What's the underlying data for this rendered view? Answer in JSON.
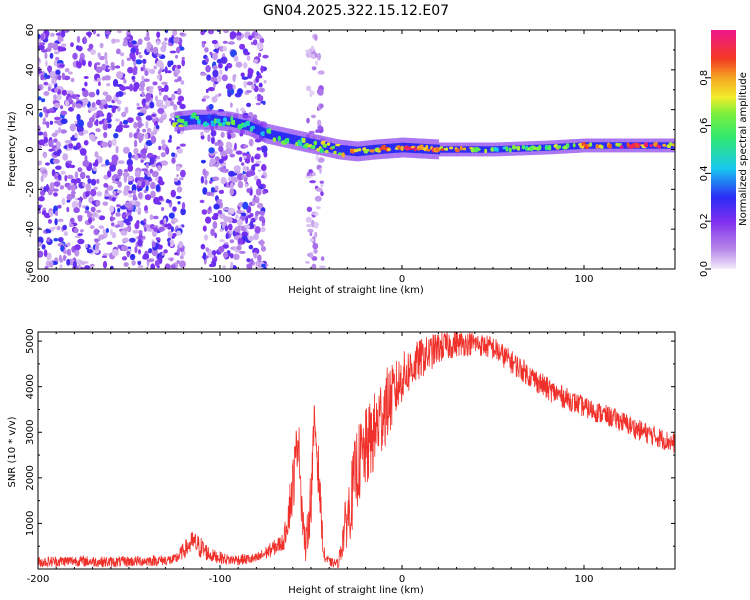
{
  "title": "GN04.2025.322.15.12.E07",
  "chart_data": [
    {
      "type": "heatmap",
      "title": "GN04.2025.322.15.12.E07",
      "xlabel": "Height of straight line (km)",
      "ylabel": "Frequency (Hz)",
      "xlim": [
        -200,
        150
      ],
      "ylim": [
        -60,
        60
      ],
      "xticks": [
        -200,
        -100,
        0,
        100
      ],
      "yticks": [
        -60,
        -40,
        -20,
        0,
        20,
        40,
        60
      ],
      "colorbar": {
        "label": "Normalized spectral amplitude",
        "range": [
          0.0,
          1.0
        ],
        "ticks": [
          0.0,
          0.2,
          0.4,
          0.6,
          0.8
        ],
        "tick_labels": [
          "0.0",
          "0.2",
          "0.4",
          "0.6",
          "0.8"
        ],
        "colors": [
          "#f4ecfb",
          "#b98ae8",
          "#7e2ff0",
          "#2a2cf5",
          "#19c8f0",
          "#2fe86f",
          "#7cf03c",
          "#f2ec2a",
          "#f5a623",
          "#f23a22",
          "#f0168c"
        ]
      },
      "ridge": {
        "x": [
          -125,
          -115,
          -105,
          -95,
          -85,
          -75,
          -65,
          -55,
          -45,
          -35,
          -25,
          -15,
          0,
          20,
          50,
          80,
          100,
          150
        ],
        "frequency": [
          14,
          15,
          15,
          14,
          12,
          8,
          6,
          4,
          2,
          0,
          -1,
          0,
          1,
          0,
          0,
          1,
          2,
          2
        ],
        "amplitude": [
          0.55,
          0.55,
          0.45,
          0.5,
          0.45,
          0.5,
          0.55,
          0.6,
          0.65,
          0.7,
          0.75,
          0.85,
          0.8,
          0.85,
          0.55,
          0.6,
          0.85,
          0.9
        ]
      },
      "noise_regions": [
        {
          "x_range": [
            -200,
            -120
          ],
          "density": "high"
        },
        {
          "x_range": [
            -110,
            -75
          ],
          "density": "high"
        },
        {
          "x_range": [
            -52,
            -43
          ],
          "density": "medium"
        }
      ]
    },
    {
      "type": "line",
      "xlabel": "Height of straight line (km)",
      "ylabel": "SNR (10 * v/v)",
      "xlim": [
        -200,
        150
      ],
      "ylim": [
        0,
        5200
      ],
      "xticks": [
        -200,
        -100,
        0,
        100
      ],
      "yticks": [
        1000,
        2000,
        3000,
        4000,
        5000
      ],
      "color": "#f0302a",
      "series": [
        {
          "name": "SNR",
          "x": [
            -200,
            -180,
            -160,
            -140,
            -125,
            -115,
            -110,
            -105,
            -95,
            -80,
            -65,
            -60,
            -57,
            -55,
            -53,
            -50,
            -48,
            -46,
            -43,
            -40,
            -35,
            -32,
            -28,
            -25,
            -20,
            -15,
            -10,
            -5,
            0,
            10,
            20,
            30,
            40,
            50,
            60,
            70,
            80,
            90,
            100,
            110,
            120,
            130,
            140,
            150
          ],
          "values": [
            150,
            180,
            150,
            180,
            200,
            600,
            450,
            300,
            200,
            220,
            600,
            1800,
            3000,
            1400,
            400,
            1600,
            3300,
            2200,
            300,
            150,
            120,
            800,
            1500,
            2200,
            2600,
            3000,
            3500,
            3800,
            4200,
            4600,
            4850,
            4950,
            4950,
            4850,
            4550,
            4250,
            3950,
            3750,
            3550,
            3400,
            3250,
            3050,
            2900,
            2750
          ],
          "spread": [
            120,
            120,
            120,
            120,
            120,
            250,
            250,
            150,
            120,
            120,
            200,
            700,
            500,
            600,
            300,
            700,
            500,
            600,
            200,
            100,
            100,
            500,
            800,
            900,
            900,
            900,
            900,
            700,
            550,
            450,
            350,
            300,
            250,
            260,
            260,
            260,
            260,
            240,
            230,
            230,
            230,
            230,
            230,
            230
          ]
        }
      ]
    }
  ]
}
